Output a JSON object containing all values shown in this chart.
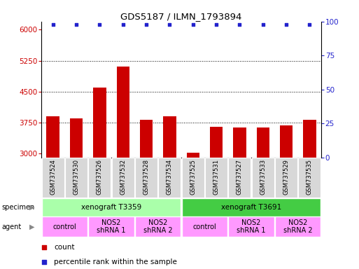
{
  "title": "GDS5187 / ILMN_1793894",
  "samples": [
    "GSM737524",
    "GSM737530",
    "GSM737526",
    "GSM737532",
    "GSM737528",
    "GSM737534",
    "GSM737525",
    "GSM737531",
    "GSM737527",
    "GSM737533",
    "GSM737529",
    "GSM737535"
  ],
  "counts": [
    3900,
    3850,
    4600,
    5100,
    3820,
    3900,
    3020,
    3650,
    3620,
    3620,
    3680,
    3820
  ],
  "ylim_left": [
    2900,
    6200
  ],
  "yticks_left": [
    3000,
    3750,
    4500,
    5250,
    6000
  ],
  "yticks_right": [
    0,
    25,
    50,
    75,
    100
  ],
  "bar_color": "#cc0000",
  "dot_color": "#2222cc",
  "bar_width": 0.55,
  "specimen_labels": [
    {
      "text": "xenograft T3359",
      "start": 0,
      "end": 5,
      "color": "#aaffaa"
    },
    {
      "text": "xenograft T3691",
      "start": 6,
      "end": 11,
      "color": "#44cc44"
    }
  ],
  "agent_groups": [
    {
      "text": "control",
      "cols": [
        0,
        1
      ],
      "color": "#ff99ff"
    },
    {
      "text": "NOS2\nshRNA 1",
      "cols": [
        2,
        3
      ],
      "color": "#ff99ff"
    },
    {
      "text": "NOS2\nshRNA 2",
      "cols": [
        4,
        5
      ],
      "color": "#ff99ff"
    },
    {
      "text": "control",
      "cols": [
        6,
        7
      ],
      "color": "#ff99ff"
    },
    {
      "text": "NOS2\nshRNA 1",
      "cols": [
        8,
        9
      ],
      "color": "#ff99ff"
    },
    {
      "text": "NOS2\nshRNA 2",
      "cols": [
        10,
        11
      ],
      "color": "#ff99ff"
    }
  ]
}
